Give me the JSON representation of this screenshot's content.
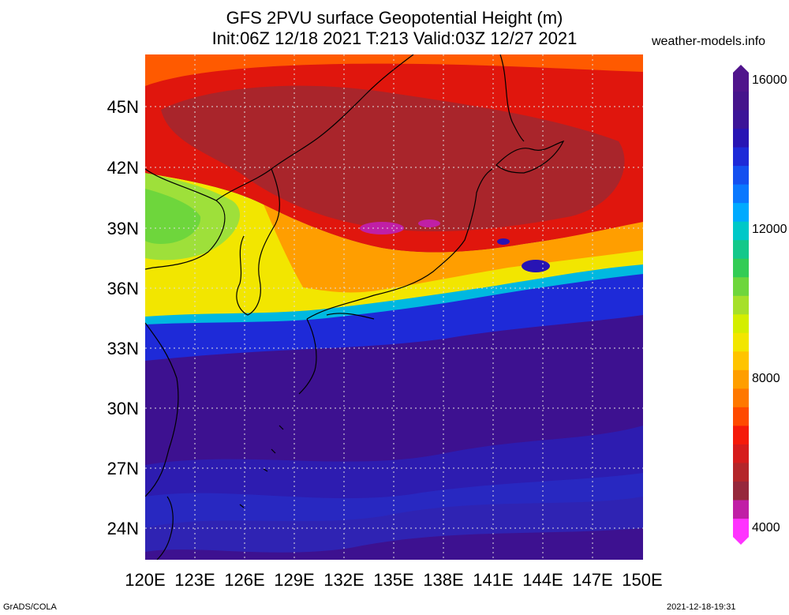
{
  "title": {
    "line1": "GFS 2PVU surface Geopotential Height (m)",
    "line2": "Init:06Z 12/18 2021 T:213 Valid:03Z 12/27 2021"
  },
  "site": "weather-models.info",
  "lat_labels": [
    "45N",
    "42N",
    "39N",
    "36N",
    "33N",
    "30N",
    "27N",
    "24N"
  ],
  "lon_labels": [
    "120E",
    "123E",
    "126E",
    "129E",
    "132E",
    "135E",
    "138E",
    "141E",
    "144E",
    "147E",
    "150E"
  ],
  "colorbar": {
    "labels": [
      "16000",
      "12000",
      "8000",
      "4000"
    ],
    "colors": [
      "#ff33ff",
      "#c01fa6",
      "#96283c",
      "#b4262a",
      "#d61c1c",
      "#f51a0a",
      "#ff4a00",
      "#ff7800",
      "#ff9e00",
      "#ffc400",
      "#f2e600",
      "#d4ee00",
      "#a6e02a",
      "#6ed63c",
      "#33cc55",
      "#14c88a",
      "#00c8c8",
      "#00aaff",
      "#0a78ff",
      "#1450f0",
      "#1e2ad8",
      "#2814b4",
      "#3c1498",
      "#46148c",
      "#50148c"
    ]
  },
  "legend_colors": {
    "purple_ocean": "#3d1190",
    "deep_blue": "#1e2ad8",
    "cyan": "#00c8c8",
    "yellow": "#f2e600",
    "orange": "#ff9e00",
    "red": "#e0160d",
    "darkred": "#a3272f",
    "magenta": "#c01fa6"
  },
  "footer": {
    "left": "GrADS/COLA",
    "right": "2021-12-18-19:31"
  }
}
